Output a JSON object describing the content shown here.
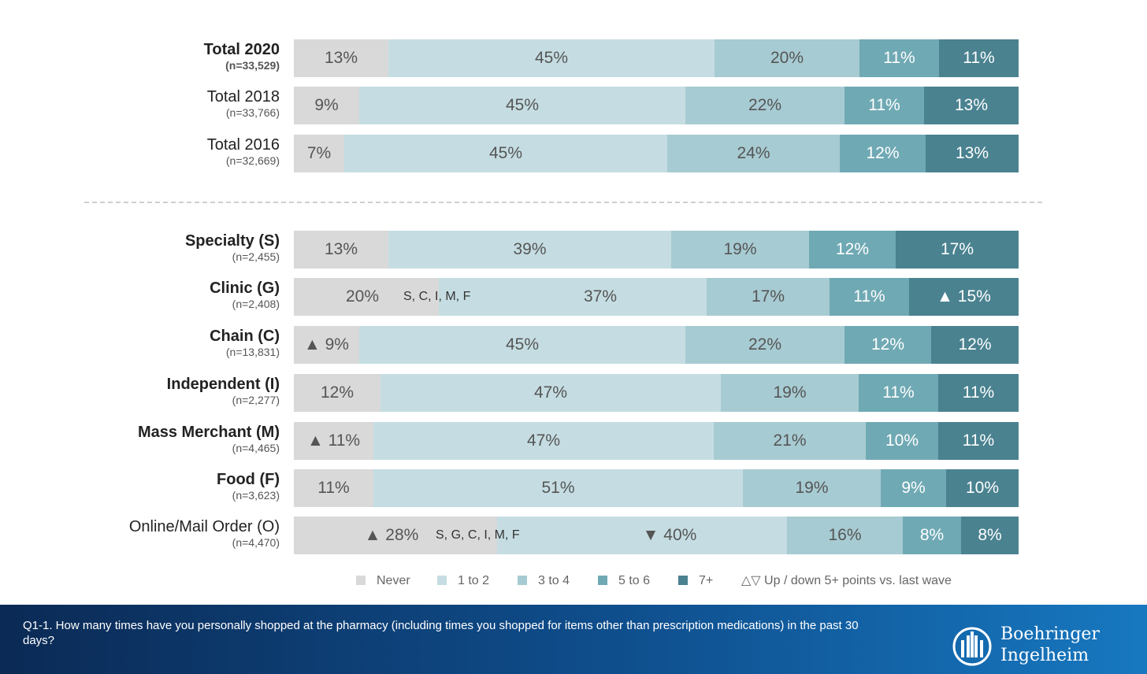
{
  "chart_data": {
    "type": "bar",
    "orientation": "horizontal",
    "stacked": true,
    "value_unit": "%",
    "series": [
      {
        "name": "Never",
        "color": "#d9d9d9"
      },
      {
        "name": "1 to 2",
        "color": "#c5dde2"
      },
      {
        "name": "3 to 4",
        "color": "#a7cbd2"
      },
      {
        "name": "5 to 6",
        "color": "#6fa9b4"
      },
      {
        "name": "7+",
        "color": "#4a8290"
      }
    ],
    "rows": [
      {
        "name": "Total 2020",
        "n": "(n=33,529)",
        "bold": true,
        "values": [
          13,
          45,
          20,
          11,
          11
        ],
        "labels": [
          "13%",
          "45%",
          "20%",
          "11%",
          "11%"
        ]
      },
      {
        "name": "Total 2018",
        "n": "(n=33,766)",
        "bold": false,
        "values": [
          9,
          45,
          22,
          11,
          13
        ],
        "labels": [
          "9%",
          "45%",
          "22%",
          "11%",
          "13%"
        ]
      },
      {
        "name": "Total 2016",
        "n": "(n=32,669)",
        "bold": false,
        "values": [
          7,
          45,
          24,
          12,
          13
        ],
        "labels": [
          "7%",
          "45%",
          "24%",
          "12%",
          "13%"
        ]
      },
      {
        "name": "Specialty (S)",
        "n": "(n=2,455)",
        "bold": true,
        "values": [
          13,
          39,
          19,
          12,
          17
        ],
        "labels": [
          "13%",
          "39%",
          "19%",
          "12%",
          "17%"
        ]
      },
      {
        "name": "Clinic (G)",
        "n": "(n=2,408)",
        "bold": true,
        "values": [
          20,
          37,
          17,
          11,
          15
        ],
        "labels": [
          "20%",
          "37%",
          "17%",
          "11%",
          "▲ 15%"
        ],
        "sig_text": "S, C, I, M, F"
      },
      {
        "name": "Chain (C)",
        "n": "(n=13,831)",
        "bold": true,
        "values": [
          9,
          45,
          22,
          12,
          12
        ],
        "labels": [
          "▲ 9%",
          "45%",
          "22%",
          "12%",
          "12%"
        ]
      },
      {
        "name": "Independent (I)",
        "n": "(n=2,277)",
        "bold": true,
        "values": [
          12,
          47,
          19,
          11,
          11
        ],
        "labels": [
          "12%",
          "47%",
          "19%",
          "11%",
          "11%"
        ]
      },
      {
        "name": "Mass Merchant (M)",
        "n": "(n=4,465)",
        "bold": true,
        "values": [
          11,
          47,
          21,
          10,
          11
        ],
        "labels": [
          "▲ 11%",
          "47%",
          "21%",
          "10%",
          "11%"
        ]
      },
      {
        "name": "Food (F)",
        "n": "(n=3,623)",
        "bold": true,
        "values": [
          11,
          51,
          19,
          9,
          10
        ],
        "labels": [
          "11%",
          "51%",
          "19%",
          "9%",
          "10%"
        ]
      },
      {
        "name": "Online/Mail Order (O)",
        "n": "(n=4,470)",
        "bold": false,
        "values": [
          28,
          40,
          16,
          8,
          8
        ],
        "labels": [
          "▲ 28%",
          "▼ 40%",
          "16%",
          "8%",
          "8%"
        ],
        "sig_text": "S, G, C, I, M, F"
      }
    ],
    "legend_note": "△▽ Up / down 5+ points vs. last wave",
    "grid": false,
    "legend_position": "bottom"
  },
  "footer": {
    "question": "Q1-1. How many times have you personally shopped at the pharmacy (including times you shopped for items other than prescription medications) in the past 30 days?"
  },
  "logo": {
    "line1": "Boehringer",
    "line2": "Ingelheim"
  }
}
